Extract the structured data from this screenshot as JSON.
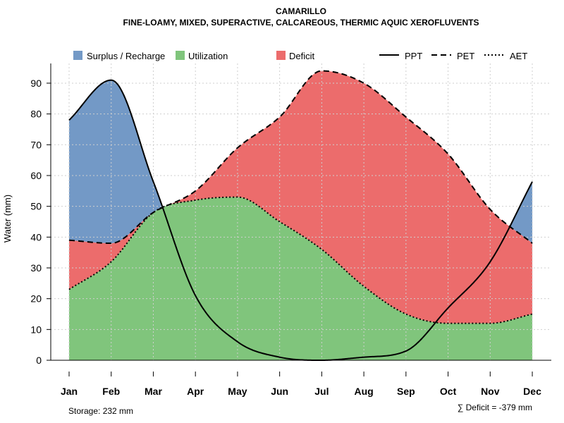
{
  "chart_data": {
    "type": "area",
    "title": "CAMARILLO",
    "subtitle": "FINE-LOAMY, MIXED, SUPERACTIVE, CALCAREOUS, THERMIC AQUIC XEROFLUVENTS",
    "xlabel": "",
    "ylabel": "Water (mm)",
    "ylim": [
      0,
      95
    ],
    "yticks": [
      0,
      10,
      20,
      30,
      40,
      50,
      60,
      70,
      80,
      90
    ],
    "categories": [
      "Jan",
      "Feb",
      "Mar",
      "Apr",
      "May",
      "Jun",
      "Jul",
      "Aug",
      "Sep",
      "Oct",
      "Nov",
      "Dec"
    ],
    "grid": true,
    "series": [
      {
        "name": "PPT",
        "values": [
          78,
          91,
          58,
          21,
          6,
          1,
          0,
          1,
          3,
          17,
          32,
          58
        ]
      },
      {
        "name": "PET",
        "values": [
          39,
          38,
          48,
          55,
          69,
          79,
          94,
          90,
          79,
          67,
          49,
          38
        ]
      },
      {
        "name": "AET",
        "values": [
          23,
          32,
          48,
          52,
          53,
          45,
          36,
          24,
          15,
          12,
          12,
          15
        ]
      }
    ],
    "legend": {
      "position": "top",
      "fills": [
        {
          "name": "Surplus / Recharge",
          "color": "#7399c6"
        },
        {
          "name": "Utilization",
          "color": "#80c57c"
        },
        {
          "name": "Deficit",
          "color": "#ec6c6c"
        }
      ],
      "lines": [
        {
          "name": "PPT",
          "style": "solid"
        },
        {
          "name": "PET",
          "style": "dashed"
        },
        {
          "name": "AET",
          "style": "dotted"
        }
      ]
    },
    "notes": {
      "storage": "Storage: 232 mm",
      "deficit": "∑ Deficit = -379 mm"
    }
  }
}
